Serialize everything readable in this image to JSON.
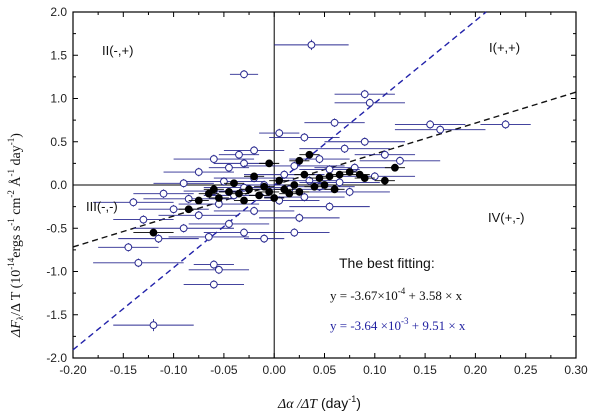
{
  "chart_data": {
    "type": "scatter",
    "xlabel": {
      "prefix": "Δα /ΔT",
      "unit": "(day",
      "exp": "-1",
      "close": ")"
    },
    "ylabel": {
      "dF": "ΔF",
      "sub": "λ",
      "mid": "/Δ T (10",
      "e1": "-14",
      "t2": "ergs s",
      "e2": "-1",
      "t3": " cm",
      "e3": "-2",
      "t4": " Å",
      "e4": "-1",
      "t5": " day",
      "e5": "-1",
      "t6": ")"
    },
    "xlim": [
      -0.2,
      0.3
    ],
    "ylim": [
      -2.0,
      2.0
    ],
    "xticks": [
      "-0.20",
      "-0.15",
      "-0.10",
      "-0.05",
      "0.00",
      "0.05",
      "0.10",
      "0.15",
      "0.20",
      "0.25",
      "0.30"
    ],
    "yticks": [
      "2.0",
      "1.5",
      "1.0",
      "0.5",
      "0.0",
      "-0.5",
      "-1.0",
      "-1.5",
      "-2.0"
    ],
    "grid": false,
    "quadrants": {
      "q1": "I(+,+)",
      "q2": "II(-,+)",
      "q3": "III(-,-)",
      "q4": "IV(+,-)"
    },
    "annotation": {
      "title": "The best fitting:",
      "eq1": {
        "a": "y = -3.67×10",
        "e": "-4",
        "b": " + 3.58 × x",
        "color": "#111111"
      },
      "eq2": {
        "a": "y = -3.64 ×10",
        "e": "-3",
        "b": " + 9.51 × x",
        "color": "#1f1fa0"
      }
    },
    "fits": [
      {
        "intercept": -0.000367,
        "slope": 3.58,
        "color": "#111111"
      },
      {
        "intercept": -0.00364,
        "slope": 9.51,
        "color": "#2222aa"
      }
    ],
    "series": [
      {
        "marker": "open-circle",
        "color": "#2a2a90",
        "points": [
          {
            "x": 0.037,
            "y": 1.62,
            "xe": 0.037,
            "ye": 0.06
          },
          {
            "x": -0.03,
            "y": 1.28,
            "xe": 0.014,
            "ye": 0.05
          },
          {
            "x": 0.09,
            "y": 1.05,
            "xe": 0.03,
            "ye": 0.05
          },
          {
            "x": 0.095,
            "y": 0.95,
            "xe": 0.035,
            "ye": 0.05
          },
          {
            "x": 0.06,
            "y": 0.72,
            "xe": 0.03,
            "ye": 0.05
          },
          {
            "x": 0.155,
            "y": 0.7,
            "xe": 0.035,
            "ye": 0.05
          },
          {
            "x": 0.23,
            "y": 0.7,
            "xe": 0.025,
            "ye": 0.05
          },
          {
            "x": 0.165,
            "y": 0.64,
            "xe": 0.045,
            "ye": 0.05
          },
          {
            "x": 0.005,
            "y": 0.6,
            "xe": 0.02,
            "ye": 0.05
          },
          {
            "x": 0.03,
            "y": 0.55,
            "xe": 0.035,
            "ye": 0.05
          },
          {
            "x": 0.09,
            "y": 0.5,
            "xe": 0.04,
            "ye": 0.05
          },
          {
            "x": 0.07,
            "y": 0.42,
            "xe": 0.045,
            "ye": 0.05
          },
          {
            "x": -0.02,
            "y": 0.4,
            "xe": 0.03,
            "ye": 0.05
          },
          {
            "x": 0.11,
            "y": 0.35,
            "xe": 0.03,
            "ye": 0.05
          },
          {
            "x": -0.035,
            "y": 0.35,
            "xe": 0.02,
            "ye": 0.05
          },
          {
            "x": 0.045,
            "y": 0.3,
            "xe": 0.03,
            "ye": 0.05
          },
          {
            "x": -0.06,
            "y": 0.3,
            "xe": 0.04,
            "ye": 0.05
          },
          {
            "x": -0.03,
            "y": 0.25,
            "xe": 0.03,
            "ye": 0.05
          },
          {
            "x": 0.125,
            "y": 0.28,
            "xe": 0.04,
            "ye": 0.05
          },
          {
            "x": 0.02,
            "y": 0.22,
            "xe": 0.05,
            "ye": 0.05
          },
          {
            "x": 0.08,
            "y": 0.2,
            "xe": 0.04,
            "ye": 0.05
          },
          {
            "x": -0.045,
            "y": 0.2,
            "xe": 0.02,
            "ye": 0.05
          },
          {
            "x": 0.055,
            "y": 0.18,
            "xe": 0.03,
            "ye": 0.05
          },
          {
            "x": -0.075,
            "y": 0.15,
            "xe": 0.035,
            "ye": 0.05
          },
          {
            "x": 0.01,
            "y": 0.12,
            "xe": 0.04,
            "ye": 0.05
          },
          {
            "x": 0.1,
            "y": 0.1,
            "xe": 0.04,
            "ye": 0.05
          },
          {
            "x": -0.02,
            "y": 0.08,
            "xe": 0.04,
            "ye": 0.05
          },
          {
            "x": 0.035,
            "y": 0.05,
            "xe": 0.03,
            "ye": 0.05
          },
          {
            "x": -0.05,
            "y": 0.04,
            "xe": 0.04,
            "ye": 0.05
          },
          {
            "x": 0.065,
            "y": 0.03,
            "xe": 0.04,
            "ye": 0.05
          },
          {
            "x": -0.09,
            "y": 0.02,
            "xe": 0.03,
            "ye": 0.05
          },
          {
            "x": -0.01,
            "y": 0.0,
            "xe": 0.03,
            "ye": 0.05
          },
          {
            "x": 0.045,
            "y": -0.02,
            "xe": 0.035,
            "ye": 0.05
          },
          {
            "x": -0.03,
            "y": -0.03,
            "xe": 0.04,
            "ye": 0.05
          },
          {
            "x": 0.015,
            "y": -0.05,
            "xe": 0.05,
            "ye": 0.05
          },
          {
            "x": -0.06,
            "y": -0.07,
            "xe": 0.03,
            "ye": 0.05
          },
          {
            "x": 0.075,
            "y": -0.08,
            "xe": 0.04,
            "ye": 0.05
          },
          {
            "x": -0.11,
            "y": -0.1,
            "xe": 0.03,
            "ye": 0.05
          },
          {
            "x": -0.04,
            "y": -0.12,
            "xe": 0.03,
            "ye": 0.05
          },
          {
            "x": 0.03,
            "y": -0.14,
            "xe": 0.04,
            "ye": 0.05
          },
          {
            "x": -0.085,
            "y": -0.16,
            "xe": 0.045,
            "ye": 0.05
          },
          {
            "x": 0.005,
            "y": -0.18,
            "xe": 0.04,
            "ye": 0.05
          },
          {
            "x": -0.14,
            "y": -0.2,
            "xe": 0.04,
            "ye": 0.05
          },
          {
            "x": -0.055,
            "y": -0.22,
            "xe": 0.04,
            "ye": 0.05
          },
          {
            "x": 0.055,
            "y": -0.25,
            "xe": 0.04,
            "ye": 0.05
          },
          {
            "x": -0.1,
            "y": -0.28,
            "xe": 0.035,
            "ye": 0.05
          },
          {
            "x": -0.02,
            "y": -0.3,
            "xe": 0.04,
            "ye": 0.05
          },
          {
            "x": -0.075,
            "y": -0.35,
            "xe": 0.04,
            "ye": 0.05
          },
          {
            "x": 0.025,
            "y": -0.38,
            "xe": 0.04,
            "ye": 0.05
          },
          {
            "x": -0.13,
            "y": -0.4,
            "xe": 0.03,
            "ye": 0.05
          },
          {
            "x": -0.045,
            "y": -0.45,
            "xe": 0.04,
            "ye": 0.05
          },
          {
            "x": -0.09,
            "y": -0.5,
            "xe": 0.05,
            "ye": 0.05
          },
          {
            "x": -0.03,
            "y": -0.55,
            "xe": 0.04,
            "ye": 0.05
          },
          {
            "x": 0.02,
            "y": -0.55,
            "xe": 0.035,
            "ye": 0.05
          },
          {
            "x": -0.065,
            "y": -0.6,
            "xe": 0.04,
            "ye": 0.05
          },
          {
            "x": -0.01,
            "y": -0.62,
            "xe": 0.02,
            "ye": 0.05
          },
          {
            "x": -0.115,
            "y": -0.62,
            "xe": 0.04,
            "ye": 0.05
          },
          {
            "x": -0.145,
            "y": -0.72,
            "xe": 0.03,
            "ye": 0.05
          },
          {
            "x": -0.06,
            "y": -0.92,
            "xe": 0.02,
            "ye": 0.05
          },
          {
            "x": -0.135,
            "y": -0.9,
            "xe": 0.045,
            "ye": 0.05
          },
          {
            "x": -0.055,
            "y": -0.98,
            "xe": 0.03,
            "ye": 0.05
          },
          {
            "x": -0.06,
            "y": -1.15,
            "xe": 0.03,
            "ye": 0.05
          },
          {
            "x": -0.12,
            "y": -1.62,
            "xe": 0.04,
            "ye": 0.07
          }
        ]
      },
      {
        "marker": "filled-circle",
        "color": "#000000",
        "points": [
          {
            "x": -0.12,
            "y": -0.55,
            "xe": 0.02,
            "ye": 0.04
          },
          {
            "x": -0.085,
            "y": -0.28,
            "xe": 0.01,
            "ye": 0.03
          },
          {
            "x": -0.075,
            "y": -0.18,
            "xe": 0.01,
            "ye": 0.03
          },
          {
            "x": -0.065,
            "y": -0.1,
            "xe": 0.01,
            "ye": 0.03
          },
          {
            "x": -0.06,
            "y": -0.05,
            "xe": 0.01,
            "ye": 0.03
          },
          {
            "x": -0.055,
            "y": -0.15,
            "xe": 0.01,
            "ye": 0.03
          },
          {
            "x": -0.045,
            "y": -0.08,
            "xe": 0.01,
            "ye": 0.03
          },
          {
            "x": -0.04,
            "y": 0.02,
            "xe": 0.01,
            "ye": 0.03
          },
          {
            "x": -0.035,
            "y": -0.1,
            "xe": 0.01,
            "ye": 0.03
          },
          {
            "x": -0.03,
            "y": -0.18,
            "xe": 0.01,
            "ye": 0.03
          },
          {
            "x": -0.025,
            "y": -0.05,
            "xe": 0.01,
            "ye": 0.03
          },
          {
            "x": -0.02,
            "y": 0.1,
            "xe": 0.01,
            "ye": 0.03
          },
          {
            "x": -0.015,
            "y": -0.12,
            "xe": 0.01,
            "ye": 0.03
          },
          {
            "x": -0.01,
            "y": -0.02,
            "xe": 0.01,
            "ye": 0.03
          },
          {
            "x": -0.005,
            "y": -0.08,
            "xe": 0.01,
            "ye": 0.03
          },
          {
            "x": 0.0,
            "y": -0.15,
            "xe": 0.01,
            "ye": 0.03
          },
          {
            "x": 0.005,
            "y": 0.05,
            "xe": 0.01,
            "ye": 0.03
          },
          {
            "x": 0.01,
            "y": -0.05,
            "xe": 0.01,
            "ye": 0.03
          },
          {
            "x": 0.015,
            "y": -0.1,
            "xe": 0.01,
            "ye": 0.03
          },
          {
            "x": 0.02,
            "y": 0.0,
            "xe": 0.01,
            "ye": 0.03
          },
          {
            "x": 0.025,
            "y": -0.08,
            "xe": 0.01,
            "ye": 0.03
          },
          {
            "x": 0.03,
            "y": 0.12,
            "xe": 0.01,
            "ye": 0.03
          },
          {
            "x": 0.035,
            "y": 0.35,
            "xe": 0.01,
            "ye": 0.03
          },
          {
            "x": 0.04,
            "y": -0.02,
            "xe": 0.01,
            "ye": 0.03
          },
          {
            "x": 0.045,
            "y": 0.08,
            "xe": 0.01,
            "ye": 0.03
          },
          {
            "x": 0.05,
            "y": 0.0,
            "xe": 0.01,
            "ye": 0.03
          },
          {
            "x": 0.055,
            "y": 0.1,
            "xe": 0.01,
            "ye": 0.03
          },
          {
            "x": 0.06,
            "y": -0.05,
            "xe": 0.01,
            "ye": 0.03
          },
          {
            "x": 0.065,
            "y": 0.12,
            "xe": 0.01,
            "ye": 0.03
          },
          {
            "x": 0.075,
            "y": 0.15,
            "xe": 0.01,
            "ye": 0.03
          },
          {
            "x": 0.085,
            "y": 0.12,
            "xe": 0.01,
            "ye": 0.03
          },
          {
            "x": 0.09,
            "y": 0.08,
            "xe": 0.01,
            "ye": 0.03
          },
          {
            "x": -0.005,
            "y": 0.25,
            "xe": 0.01,
            "ye": 0.03
          },
          {
            "x": 0.025,
            "y": 0.28,
            "xe": 0.01,
            "ye": 0.03
          },
          {
            "x": 0.11,
            "y": 0.05,
            "xe": 0.01,
            "ye": 0.03
          },
          {
            "x": 0.12,
            "y": 0.2,
            "xe": 0.01,
            "ye": 0.03
          }
        ]
      }
    ]
  }
}
